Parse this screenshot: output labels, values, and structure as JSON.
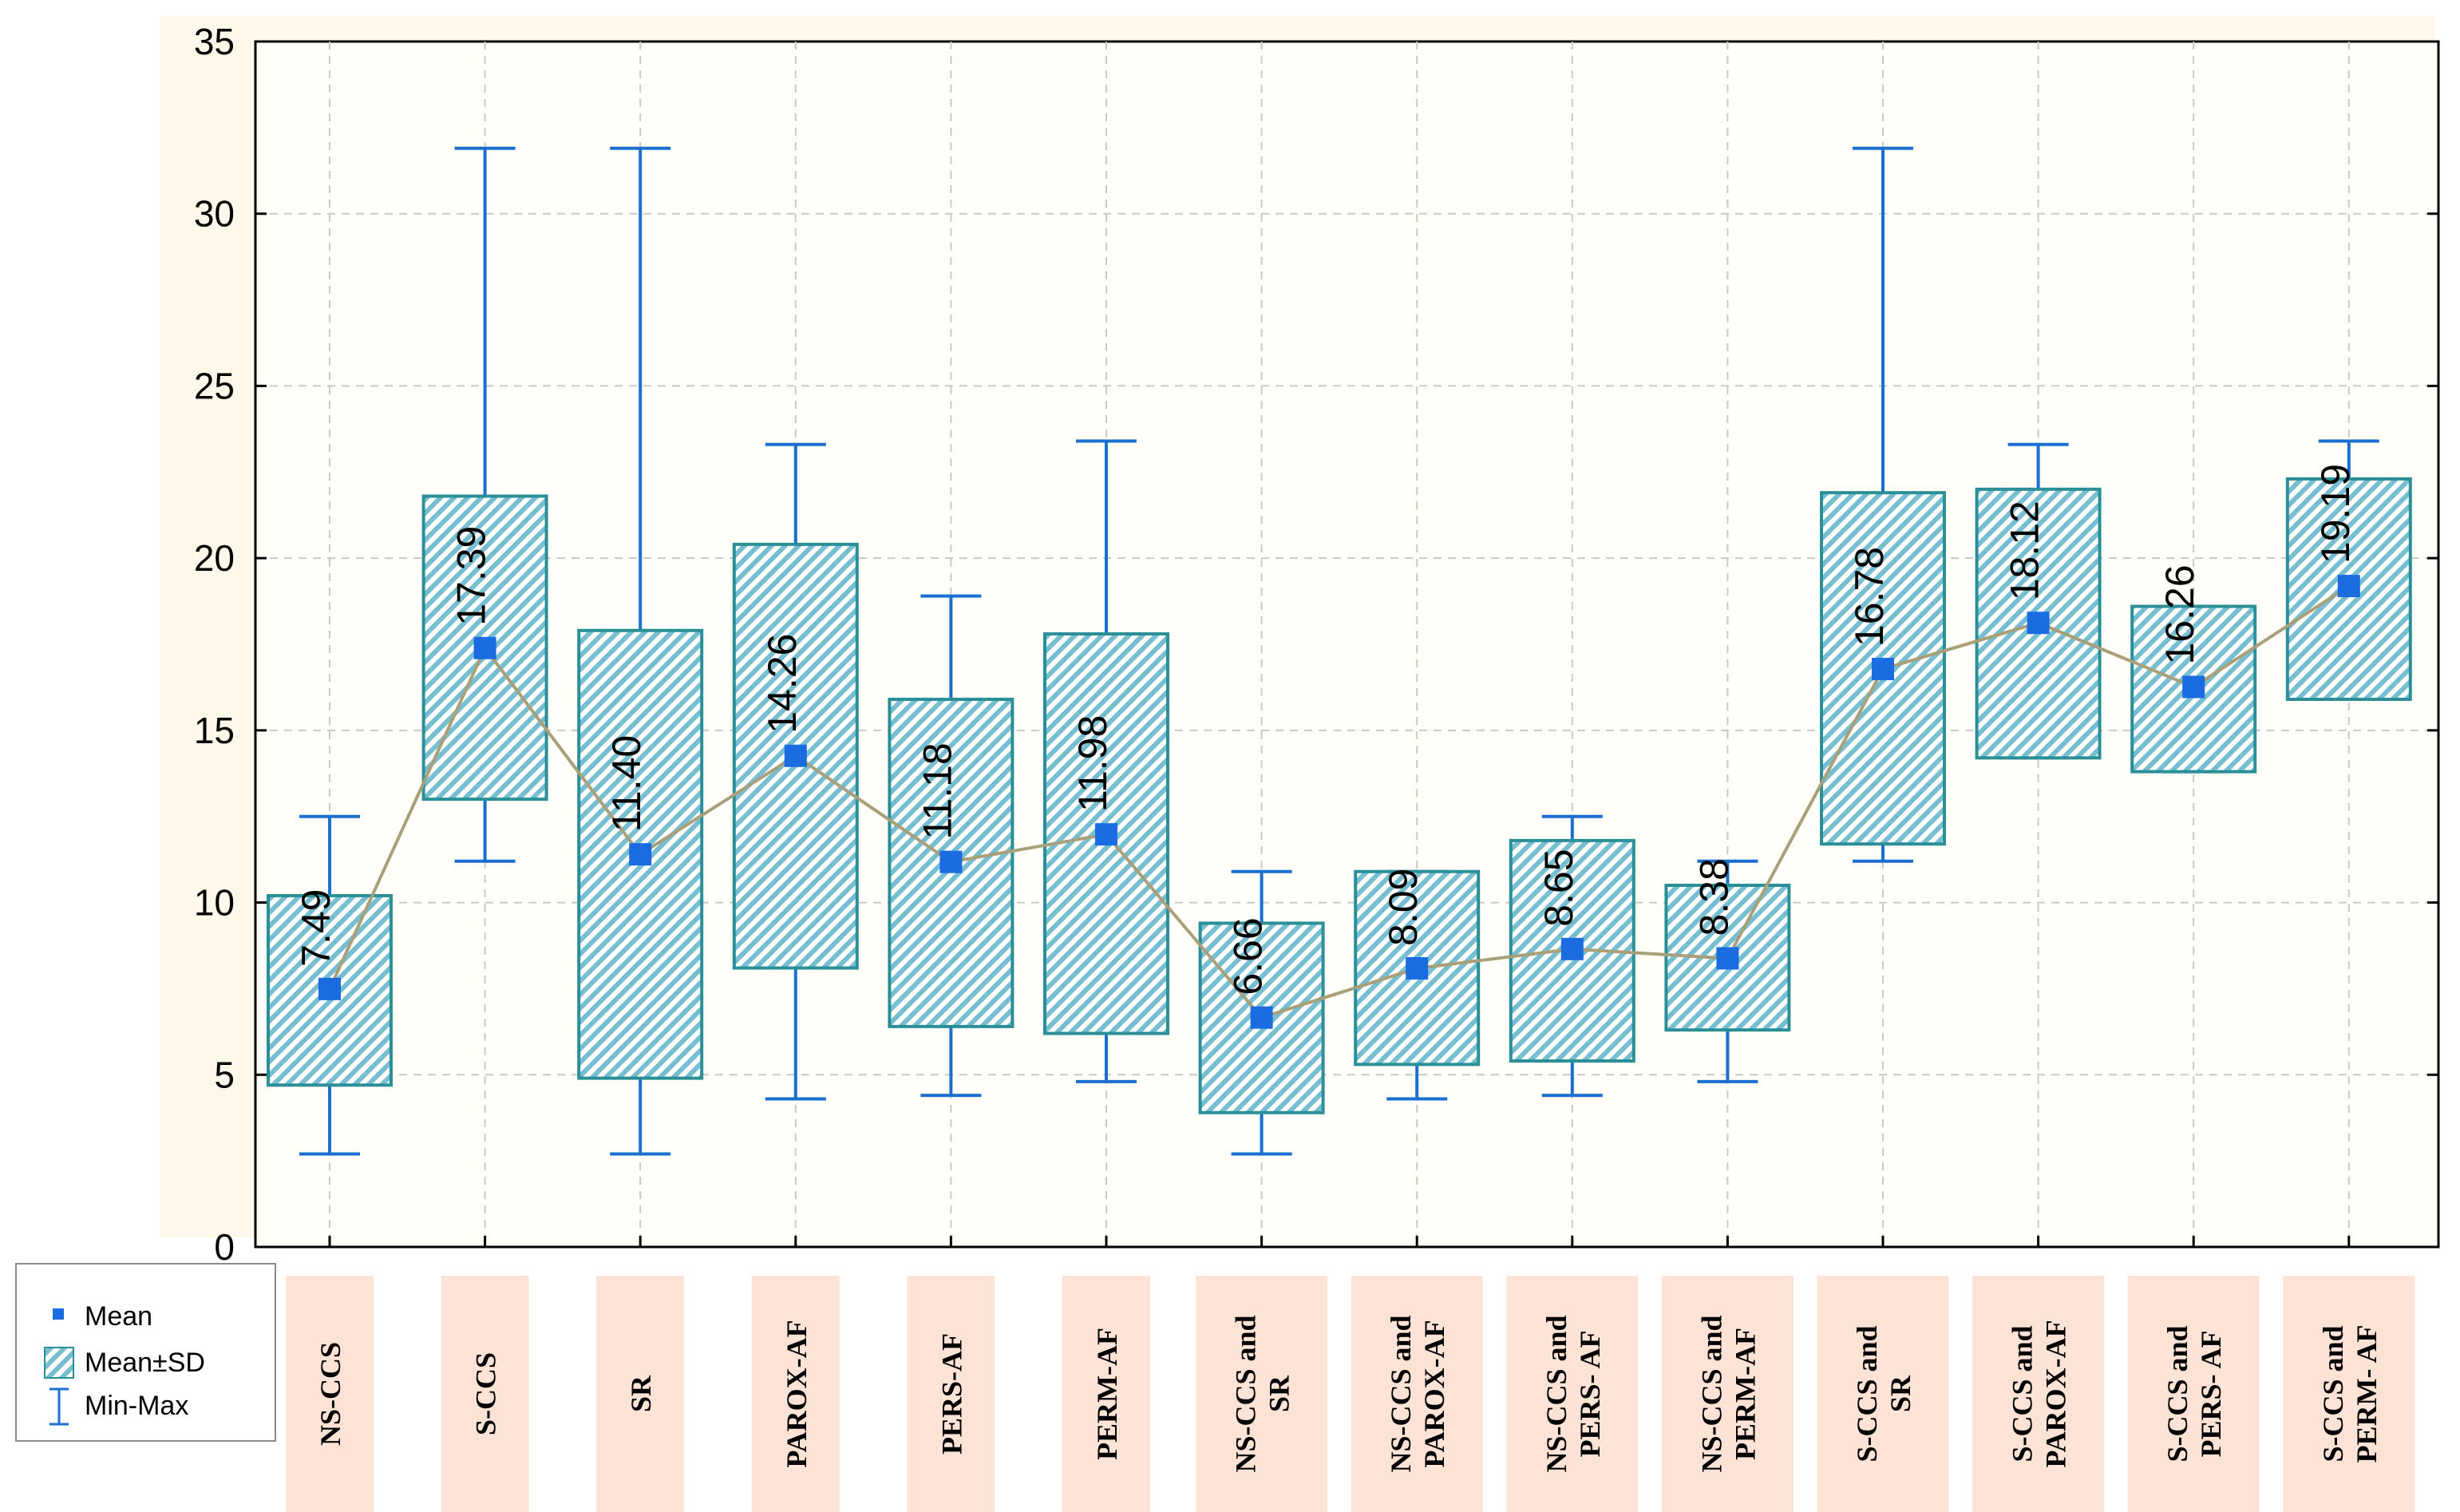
{
  "chart_data": {
    "type": "box",
    "ylim": [
      0,
      35
    ],
    "yticks": [
      0,
      5,
      10,
      15,
      20,
      25,
      30,
      35
    ],
    "categories": [
      "NS-CCS",
      "S-CCS",
      "SR",
      "PAROX-AF",
      "PERS-AF",
      "PERM-AF",
      "NS-CCS and SR",
      "NS-CCS and PAROX-AF",
      "NS-CCS and PERS- AF",
      "NS-CCS and PERM-AF",
      "S-CCS and SR",
      "S-CCS and PAROX-AF",
      "S-CCS and PERS- AF",
      "S-CCS and PERM- AF"
    ],
    "category_lines": [
      [
        "NS-CCS"
      ],
      [
        "S-CCS"
      ],
      [
        "SR"
      ],
      [
        "PAROX-AF"
      ],
      [
        "PERS-AF"
      ],
      [
        "PERM-AF"
      ],
      [
        "NS-CCS and",
        "SR"
      ],
      [
        "NS-CCS and",
        "PAROX-AF"
      ],
      [
        "NS-CCS and",
        "PERS- AF"
      ],
      [
        "NS-CCS and",
        "PERM-AF"
      ],
      [
        "S-CCS and",
        "SR"
      ],
      [
        "S-CCS and",
        "PAROX-AF"
      ],
      [
        "S-CCS and",
        "PERS- AF"
      ],
      [
        "S-CCS and",
        "PERM- AF"
      ]
    ],
    "mean": [
      7.49,
      17.39,
      11.4,
      14.26,
      11.18,
      11.98,
      6.66,
      8.09,
      8.65,
      8.38,
      16.78,
      18.12,
      16.26,
      19.19
    ],
    "mean_labels": [
      "7.49",
      "17.39",
      "11.40",
      "14.26",
      "11.18",
      "11.98",
      "6.66",
      "8.09",
      "8.65",
      "8.38",
      "16.78",
      "18.12",
      "16.26",
      "19.19"
    ],
    "sd_low": [
      4.7,
      13.0,
      4.9,
      8.1,
      6.4,
      6.2,
      3.9,
      5.3,
      5.4,
      6.3,
      11.7,
      14.2,
      13.8,
      15.9
    ],
    "sd_high": [
      10.2,
      21.8,
      17.9,
      20.4,
      15.9,
      17.8,
      9.4,
      10.9,
      11.8,
      10.5,
      21.9,
      22.0,
      18.6,
      22.3
    ],
    "min": [
      2.7,
      11.2,
      2.7,
      4.3,
      4.4,
      4.8,
      2.7,
      4.3,
      4.4,
      4.8,
      11.2,
      14.2,
      13.8,
      15.9
    ],
    "max": [
      12.5,
      31.9,
      31.9,
      23.3,
      18.9,
      23.4,
      10.9,
      10.9,
      12.5,
      11.2,
      31.9,
      23.3,
      18.6,
      23.4
    ],
    "legend": {
      "mean": "Mean",
      "sd": "Mean±SD",
      "range": "Min-Max"
    },
    "colors": {
      "box_stroke": "#2a8f96",
      "box_hatch": "#77bfd0",
      "whisker": "#1a6fd1",
      "mean_marker": "#1a6ce0",
      "mean_line": "#a9a07a",
      "label_bg": "#fde2d6",
      "plot_bg": "#fffef8"
    }
  }
}
